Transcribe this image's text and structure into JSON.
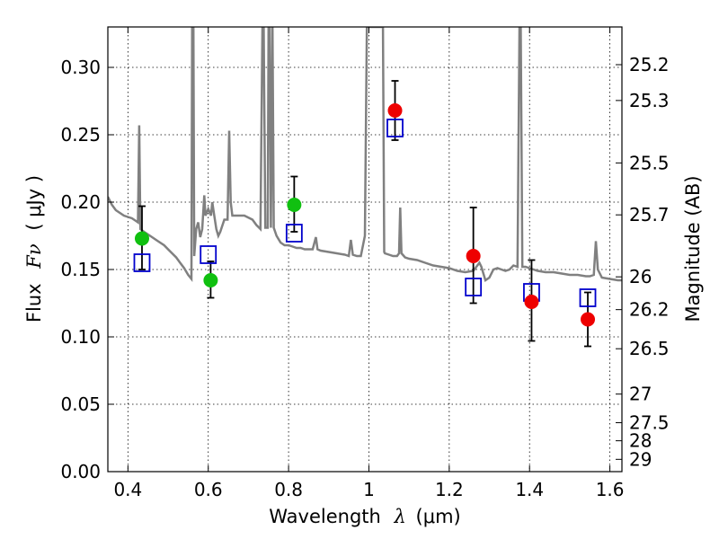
{
  "chart_data": {
    "type": "scatter",
    "xlabel_prefix": "Wavelength",
    "xlabel_symbol": "λ",
    "xlabel_unit": "(μm)",
    "ylabel_prefix": "Flux",
    "ylabel_symbol": "Fν",
    "ylabel_unit": "( μJy )",
    "y2label": "Magnitude (AB)",
    "xlim": [
      0.35,
      1.63
    ],
    "ylim": [
      0.0,
      0.33
    ],
    "grid": true,
    "x_ticks": [
      0.4,
      0.6,
      0.8,
      1.0,
      1.2,
      1.4,
      1.6
    ],
    "x_tick_labels": [
      "0.4",
      "0.6",
      "0.8",
      "1",
      "1.2",
      "1.4",
      "1.6"
    ],
    "y_ticks": [
      0.0,
      0.05,
      0.1,
      0.15,
      0.2,
      0.25,
      0.3
    ],
    "y_tick_labels": [
      "0.00",
      "0.05",
      "0.10",
      "0.15",
      "0.20",
      "0.25",
      "0.30"
    ],
    "y2_ticks": [
      "25.2",
      "25.3",
      "25.5",
      "25.7",
      "26",
      "26.2",
      "26.5",
      "27",
      "27.5",
      "28",
      "29"
    ],
    "colors": {
      "spectrum": "#808080",
      "green_points": "#10c010",
      "red_points": "#ee0000",
      "model_boxes": "#0000cc",
      "errorbars": "#000000"
    },
    "spectrum": [
      [
        0.35,
        0.204
      ],
      [
        0.36,
        0.198
      ],
      [
        0.37,
        0.194
      ],
      [
        0.38,
        0.192
      ],
      [
        0.39,
        0.19
      ],
      [
        0.4,
        0.189
      ],
      [
        0.41,
        0.188
      ],
      [
        0.42,
        0.186
      ],
      [
        0.425,
        0.185
      ],
      [
        0.428,
        0.257
      ],
      [
        0.431,
        0.18
      ],
      [
        0.44,
        0.178
      ],
      [
        0.45,
        0.176
      ],
      [
        0.46,
        0.174
      ],
      [
        0.47,
        0.172
      ],
      [
        0.48,
        0.17
      ],
      [
        0.49,
        0.168
      ],
      [
        0.5,
        0.165
      ],
      [
        0.51,
        0.162
      ],
      [
        0.52,
        0.159
      ],
      [
        0.53,
        0.155
      ],
      [
        0.54,
        0.151
      ],
      [
        0.55,
        0.146
      ],
      [
        0.558,
        0.143
      ],
      [
        0.56,
        0.33
      ],
      [
        0.563,
        0.33
      ],
      [
        0.565,
        0.16
      ],
      [
        0.57,
        0.18
      ],
      [
        0.575,
        0.185
      ],
      [
        0.58,
        0.174
      ],
      [
        0.585,
        0.18
      ],
      [
        0.59,
        0.205
      ],
      [
        0.593,
        0.19
      ],
      [
        0.6,
        0.195
      ],
      [
        0.607,
        0.19
      ],
      [
        0.61,
        0.2
      ],
      [
        0.615,
        0.19
      ],
      [
        0.62,
        0.18
      ],
      [
        0.625,
        0.175
      ],
      [
        0.63,
        0.178
      ],
      [
        0.64,
        0.187
      ],
      [
        0.648,
        0.187
      ],
      [
        0.652,
        0.253
      ],
      [
        0.656,
        0.2
      ],
      [
        0.66,
        0.19
      ],
      [
        0.67,
        0.19
      ],
      [
        0.69,
        0.19
      ],
      [
        0.71,
        0.187
      ],
      [
        0.72,
        0.183
      ],
      [
        0.73,
        0.18
      ],
      [
        0.735,
        0.33
      ],
      [
        0.738,
        0.33
      ],
      [
        0.742,
        0.181
      ],
      [
        0.748,
        0.181
      ],
      [
        0.75,
        0.33
      ],
      [
        0.753,
        0.33
      ],
      [
        0.756,
        0.181
      ],
      [
        0.76,
        0.33
      ],
      [
        0.763,
        0.181
      ],
      [
        0.77,
        0.175
      ],
      [
        0.78,
        0.17
      ],
      [
        0.79,
        0.168
      ],
      [
        0.8,
        0.168
      ],
      [
        0.81,
        0.167
      ],
      [
        0.82,
        0.166
      ],
      [
        0.83,
        0.166
      ],
      [
        0.84,
        0.165
      ],
      [
        0.86,
        0.165
      ],
      [
        0.868,
        0.174
      ],
      [
        0.872,
        0.165
      ],
      [
        0.88,
        0.164
      ],
      [
        0.9,
        0.163
      ],
      [
        0.92,
        0.162
      ],
      [
        0.94,
        0.161
      ],
      [
        0.95,
        0.16
      ],
      [
        0.955,
        0.172
      ],
      [
        0.96,
        0.161
      ],
      [
        0.97,
        0.16
      ],
      [
        0.98,
        0.16
      ],
      [
        0.99,
        0.175
      ],
      [
        0.995,
        0.33
      ],
      [
        1.0,
        0.33
      ],
      [
        1.005,
        0.33
      ],
      [
        1.01,
        0.33
      ],
      [
        1.015,
        0.33
      ],
      [
        1.02,
        0.33
      ],
      [
        1.025,
        0.33
      ],
      [
        1.03,
        0.33
      ],
      [
        1.035,
        0.33
      ],
      [
        1.038,
        0.163
      ],
      [
        1.04,
        0.162
      ],
      [
        1.05,
        0.161
      ],
      [
        1.06,
        0.16
      ],
      [
        1.07,
        0.16
      ],
      [
        1.075,
        0.162
      ],
      [
        1.078,
        0.196
      ],
      [
        1.081,
        0.162
      ],
      [
        1.09,
        0.159
      ],
      [
        1.1,
        0.158
      ],
      [
        1.12,
        0.157
      ],
      [
        1.14,
        0.155
      ],
      [
        1.16,
        0.153
      ],
      [
        1.18,
        0.152
      ],
      [
        1.2,
        0.151
      ],
      [
        1.22,
        0.149
      ],
      [
        1.24,
        0.148
      ],
      [
        1.26,
        0.149
      ],
      [
        1.275,
        0.155
      ],
      [
        1.28,
        0.152
      ],
      [
        1.29,
        0.142
      ],
      [
        1.3,
        0.144
      ],
      [
        1.31,
        0.15
      ],
      [
        1.32,
        0.151
      ],
      [
        1.33,
        0.15
      ],
      [
        1.34,
        0.149
      ],
      [
        1.35,
        0.15
      ],
      [
        1.36,
        0.153
      ],
      [
        1.37,
        0.152
      ],
      [
        1.375,
        0.33
      ],
      [
        1.378,
        0.33
      ],
      [
        1.382,
        0.152
      ],
      [
        1.39,
        0.152
      ],
      [
        1.4,
        0.151
      ],
      [
        1.42,
        0.149
      ],
      [
        1.44,
        0.148
      ],
      [
        1.46,
        0.148
      ],
      [
        1.48,
        0.147
      ],
      [
        1.5,
        0.146
      ],
      [
        1.52,
        0.146
      ],
      [
        1.54,
        0.145
      ],
      [
        1.55,
        0.145
      ],
      [
        1.56,
        0.146
      ],
      [
        1.565,
        0.171
      ],
      [
        1.57,
        0.15
      ],
      [
        1.58,
        0.144
      ],
      [
        1.6,
        0.143
      ],
      [
        1.62,
        0.142
      ],
      [
        1.63,
        0.142
      ]
    ],
    "observed_green": [
      {
        "x": 0.435,
        "y": 0.173,
        "err_hi": 0.197,
        "err_lo": 0.15
      },
      {
        "x": 0.606,
        "y": 0.142,
        "err_hi": 0.156,
        "err_lo": 0.129
      },
      {
        "x": 0.814,
        "y": 0.198,
        "err_hi": 0.219,
        "err_lo": 0.178
      }
    ],
    "observed_red": [
      {
        "x": 1.065,
        "y": 0.268,
        "err_hi": 0.29,
        "err_lo": 0.246
      },
      {
        "x": 1.26,
        "y": 0.16,
        "err_hi": 0.196,
        "err_lo": 0.125
      },
      {
        "x": 1.405,
        "y": 0.126,
        "err_hi": 0.157,
        "err_lo": 0.097
      },
      {
        "x": 1.545,
        "y": 0.113,
        "err_hi": 0.133,
        "err_lo": 0.093
      }
    ],
    "model_boxes": [
      {
        "x": 0.435,
        "y": 0.155
      },
      {
        "x": 0.6,
        "y": 0.161
      },
      {
        "x": 0.814,
        "y": 0.177
      },
      {
        "x": 1.065,
        "y": 0.255
      },
      {
        "x": 1.26,
        "y": 0.137
      },
      {
        "x": 1.405,
        "y": 0.133
      },
      {
        "x": 1.545,
        "y": 0.129
      }
    ]
  }
}
